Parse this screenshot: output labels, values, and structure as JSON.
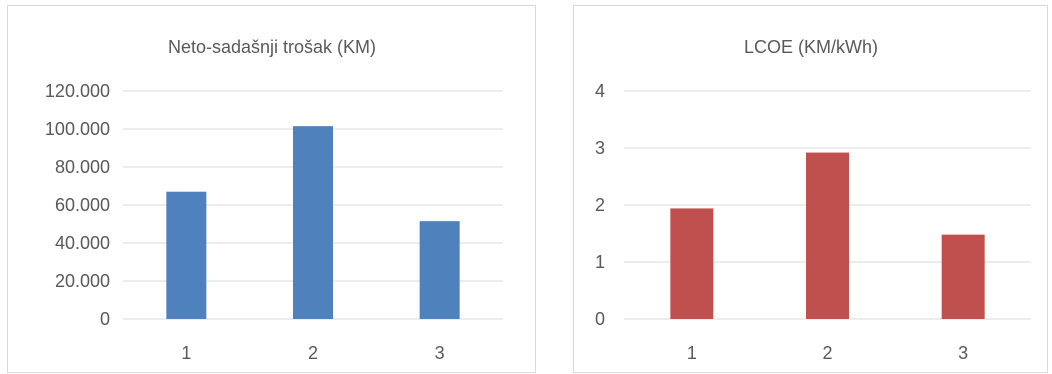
{
  "chart_data": [
    {
      "type": "bar",
      "title": "Neto-sadašnji trošak (KM)",
      "categories": [
        "1",
        "2",
        "3"
      ],
      "values": [
        67000,
        101500,
        51500
      ],
      "ylim": [
        0,
        120000
      ],
      "yticks": [
        0,
        20000,
        40000,
        60000,
        80000,
        100000,
        120000
      ],
      "ytick_labels": [
        "0",
        "20.000",
        "40.000",
        "60.000",
        "80.000",
        "100.000",
        "120.000"
      ],
      "xlabel": "",
      "ylabel": "",
      "grid": true,
      "legend": false,
      "color": "#4f81bd"
    },
    {
      "type": "bar",
      "title": "LCOE (KM/kWh)",
      "categories": [
        "1",
        "2",
        "3"
      ],
      "values": [
        1.94,
        2.92,
        1.48
      ],
      "ylim": [
        0,
        4
      ],
      "yticks": [
        0,
        1,
        2,
        3,
        4
      ],
      "ytick_labels": [
        "0",
        "1",
        "2",
        "3",
        "4"
      ],
      "xlabel": "",
      "ylabel": "",
      "grid": true,
      "legend": false,
      "color": "#c0504d"
    }
  ]
}
